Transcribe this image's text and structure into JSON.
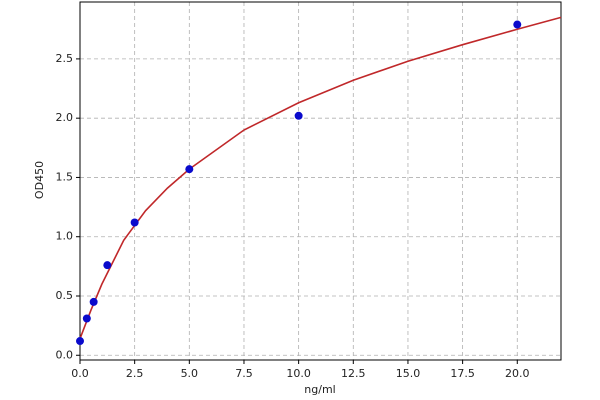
{
  "chart_data": {
    "type": "scatter",
    "x_label": "ng/ml",
    "y_label": "OD450",
    "xlim": [
      0,
      22
    ],
    "ylim": [
      -0.04,
      2.98
    ],
    "xticks": [
      {
        "value": 0,
        "label": "0.0"
      },
      2.5,
      {
        "value": 5,
        "label": "5.0"
      },
      7.5,
      {
        "value": 10,
        "label": "10.0"
      },
      12.5,
      {
        "value": 15,
        "label": "15.0"
      },
      17.5,
      {
        "value": 20,
        "label": "20.0"
      }
    ],
    "yticks": [
      {
        "value": 0,
        "label": "0.0"
      },
      0.5,
      {
        "value": 1,
        "label": "1.0"
      },
      1.5,
      {
        "value": 2,
        "label": "2.0"
      },
      2.5
    ],
    "grid": true,
    "series": [
      {
        "type": "line",
        "color": "#c0282a",
        "x": [
          0,
          0.5,
          1,
          2,
          3,
          4,
          5,
          7.5,
          10,
          12.5,
          15,
          17.5,
          20,
          22
        ],
        "values": [
          0.14,
          0.38,
          0.6,
          0.97,
          1.22,
          1.41,
          1.57,
          1.9,
          2.13,
          2.32,
          2.48,
          2.62,
          2.75,
          2.85
        ]
      },
      {
        "type": "scatter",
        "color": "#0a0acc",
        "x": [
          0,
          0.3125,
          0.625,
          1.25,
          2.5,
          5,
          10,
          20
        ],
        "values": [
          0.12,
          0.31,
          0.45,
          0.76,
          1.12,
          1.57,
          2.02,
          2.79
        ]
      }
    ]
  }
}
